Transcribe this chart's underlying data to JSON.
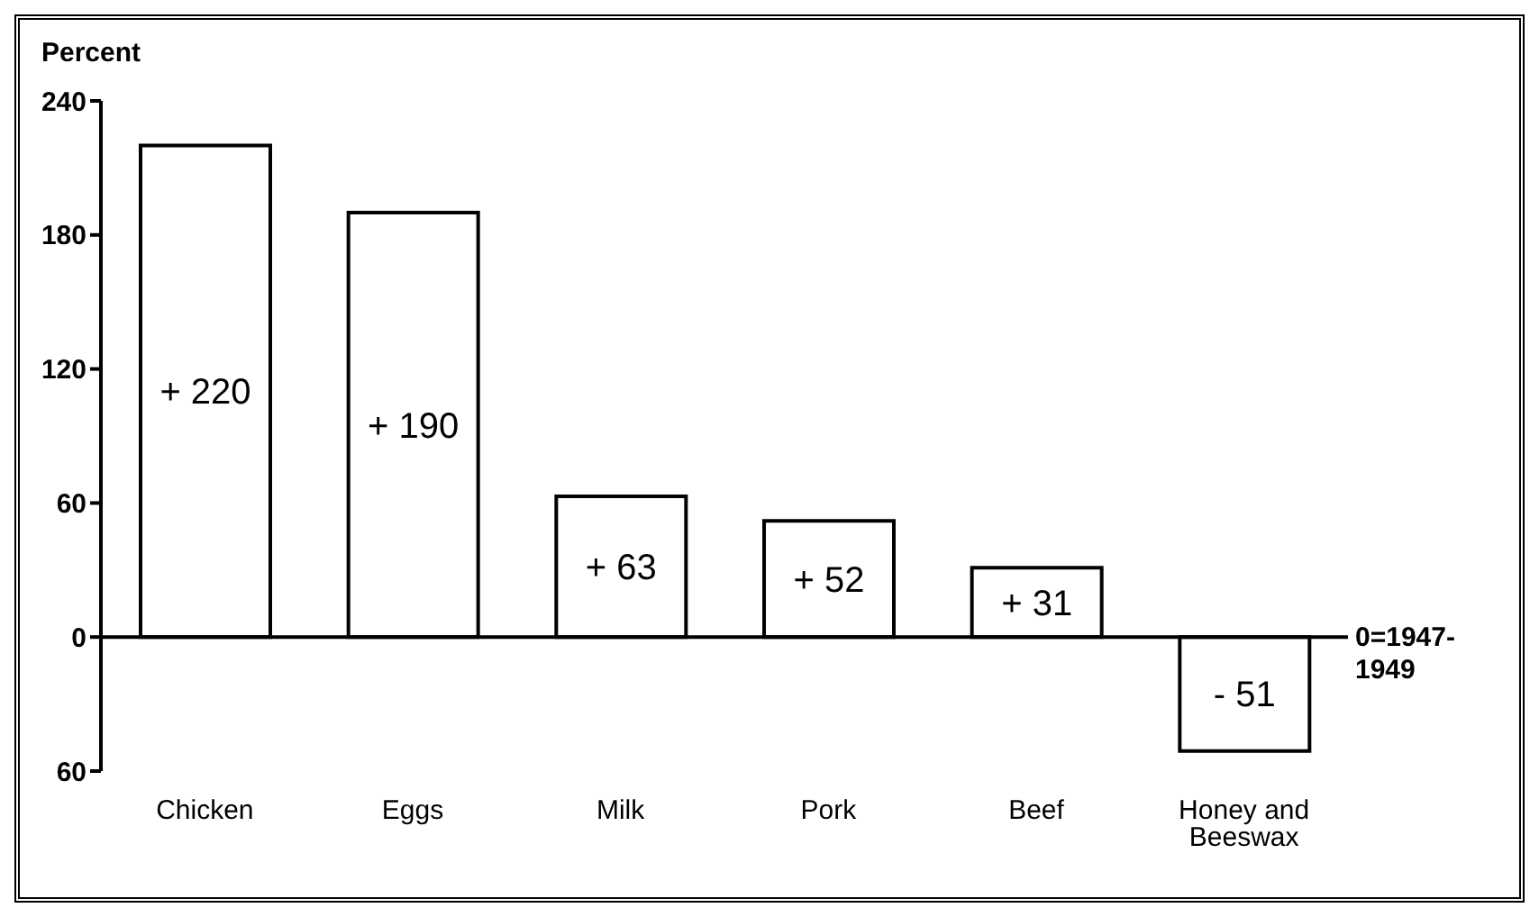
{
  "chart_data": {
    "type": "bar",
    "ylabel": "Percent",
    "categories": [
      "Chicken",
      "Eggs",
      "Milk",
      "Pork",
      "Beef",
      "Honey and Beeswax"
    ],
    "values": [
      220,
      190,
      63,
      52,
      31,
      -51
    ],
    "value_labels": [
      "+ 220",
      "+ 190",
      "+ 63",
      "+ 52",
      "+ 31",
      "- 51"
    ],
    "color": "#ffffff",
    "ylim": [
      -60,
      240
    ],
    "yticks": [
      {
        "value": -60,
        "label": "60"
      },
      0,
      60,
      120,
      180,
      240
    ],
    "ref_lines": [
      {
        "axis": "y",
        "value": 0,
        "label": "0=1947-1949"
      }
    ]
  }
}
